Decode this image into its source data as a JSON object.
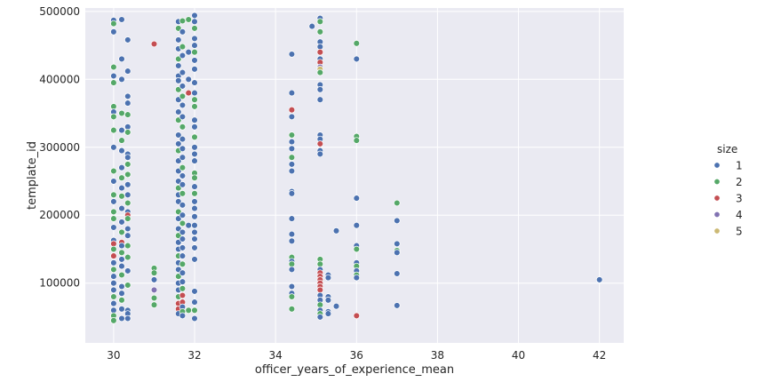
{
  "chart_data": {
    "type": "scatter",
    "title": "",
    "xlabel": "officer_years_of_experience_mean",
    "ylabel": "template_id",
    "xlim": [
      29.3,
      42.6
    ],
    "ylim": [
      12000,
      505000
    ],
    "xticks": [
      30,
      32,
      34,
      36,
      38,
      40,
      42
    ],
    "xtick_labels": [
      "30",
      "32",
      "34",
      "36",
      "38",
      "40",
      "42"
    ],
    "yticks": [
      100000,
      200000,
      300000,
      400000,
      500000
    ],
    "ytick_labels": [
      "100000",
      "200000",
      "300000",
      "400000",
      "500000"
    ],
    "grid": true,
    "legend": {
      "title": "size",
      "placement": "right",
      "entries": [
        {
          "label": "1",
          "color": "#4c72b0"
        },
        {
          "label": "2",
          "color": "#55a868"
        },
        {
          "label": "3",
          "color": "#c44e52"
        },
        {
          "label": "4",
          "color": "#8172b2"
        },
        {
          "label": "5",
          "color": "#ccb974"
        }
      ]
    },
    "colors": {
      "background": "#eaeaf2",
      "grid": "#ffffff",
      "edge": "#ffffff"
    },
    "points": [
      [
        30.0,
        487000,
        1
      ],
      [
        30.0,
        482000,
        2
      ],
      [
        30.0,
        470000,
        1
      ],
      [
        30.0,
        418000,
        2
      ],
      [
        30.0,
        405000,
        1
      ],
      [
        30.0,
        395000,
        2
      ],
      [
        30.0,
        360000,
        2
      ],
      [
        30.0,
        352000,
        1
      ],
      [
        30.0,
        345000,
        2
      ],
      [
        30.0,
        325000,
        2
      ],
      [
        30.0,
        300000,
        1
      ],
      [
        30.0,
        265000,
        2
      ],
      [
        30.0,
        250000,
        1
      ],
      [
        30.0,
        230000,
        2
      ],
      [
        30.0,
        220000,
        1
      ],
      [
        30.0,
        205000,
        2
      ],
      [
        30.0,
        195000,
        2
      ],
      [
        30.0,
        182000,
        1
      ],
      [
        30.0,
        163000,
        1
      ],
      [
        30.0,
        158000,
        3
      ],
      [
        30.0,
        150000,
        2
      ],
      [
        30.0,
        140000,
        3
      ],
      [
        30.0,
        130000,
        1
      ],
      [
        30.0,
        120000,
        2
      ],
      [
        30.0,
        110000,
        1
      ],
      [
        30.0,
        100000,
        1
      ],
      [
        30.0,
        90000,
        1
      ],
      [
        30.0,
        80000,
        2
      ],
      [
        30.0,
        70000,
        1
      ],
      [
        30.0,
        60000,
        1
      ],
      [
        30.0,
        52000,
        2
      ],
      [
        30.0,
        45000,
        2
      ],
      [
        30.2,
        488000,
        1
      ],
      [
        30.2,
        430000,
        1
      ],
      [
        30.2,
        400000,
        1
      ],
      [
        30.2,
        350000,
        2
      ],
      [
        30.2,
        325000,
        1
      ],
      [
        30.2,
        310000,
        2
      ],
      [
        30.2,
        295000,
        1
      ],
      [
        30.2,
        270000,
        1
      ],
      [
        30.2,
        255000,
        2
      ],
      [
        30.2,
        240000,
        1
      ],
      [
        30.2,
        228000,
        2
      ],
      [
        30.2,
        210000,
        1
      ],
      [
        30.2,
        190000,
        1
      ],
      [
        30.2,
        175000,
        2
      ],
      [
        30.2,
        160000,
        3
      ],
      [
        30.2,
        155000,
        1
      ],
      [
        30.2,
        145000,
        2
      ],
      [
        30.2,
        135000,
        1
      ],
      [
        30.2,
        125000,
        1
      ],
      [
        30.2,
        112000,
        2
      ],
      [
        30.2,
        95000,
        1
      ],
      [
        30.2,
        85000,
        1
      ],
      [
        30.2,
        75000,
        2
      ],
      [
        30.2,
        62000,
        1
      ],
      [
        30.2,
        48000,
        1
      ],
      [
        30.35,
        458000,
        1
      ],
      [
        30.35,
        412000,
        1
      ],
      [
        30.35,
        375000,
        1
      ],
      [
        30.35,
        365000,
        1
      ],
      [
        30.35,
        348000,
        2
      ],
      [
        30.35,
        330000,
        1
      ],
      [
        30.35,
        322000,
        2
      ],
      [
        30.35,
        290000,
        1
      ],
      [
        30.35,
        285000,
        1
      ],
      [
        30.35,
        275000,
        2
      ],
      [
        30.35,
        260000,
        2
      ],
      [
        30.35,
        245000,
        1
      ],
      [
        30.35,
        230000,
        1
      ],
      [
        30.35,
        218000,
        2
      ],
      [
        30.35,
        205000,
        1
      ],
      [
        30.35,
        200000,
        3
      ],
      [
        30.35,
        195000,
        2
      ],
      [
        30.35,
        180000,
        1
      ],
      [
        30.35,
        170000,
        1
      ],
      [
        30.35,
        155000,
        2
      ],
      [
        30.35,
        138000,
        2
      ],
      [
        30.35,
        118000,
        1
      ],
      [
        30.35,
        97000,
        2
      ],
      [
        30.35,
        60000,
        1
      ],
      [
        30.35,
        55000,
        1
      ],
      [
        30.35,
        48000,
        1
      ],
      [
        31.0,
        452000,
        3
      ],
      [
        31.0,
        122000,
        2
      ],
      [
        31.0,
        115000,
        2
      ],
      [
        31.0,
        105000,
        1
      ],
      [
        31.0,
        90000,
        4
      ],
      [
        31.0,
        78000,
        2
      ],
      [
        31.0,
        68000,
        2
      ],
      [
        31.6,
        485000,
        1
      ],
      [
        31.6,
        475000,
        2
      ],
      [
        31.6,
        458000,
        1
      ],
      [
        31.6,
        445000,
        1
      ],
      [
        31.6,
        430000,
        2
      ],
      [
        31.6,
        420000,
        1
      ],
      [
        31.6,
        405000,
        1
      ],
      [
        31.6,
        398000,
        1
      ],
      [
        31.6,
        385000,
        2
      ],
      [
        31.6,
        370000,
        1
      ],
      [
        31.6,
        352000,
        1
      ],
      [
        31.6,
        340000,
        2
      ],
      [
        31.6,
        318000,
        1
      ],
      [
        31.6,
        305000,
        1
      ],
      [
        31.6,
        295000,
        2
      ],
      [
        31.6,
        280000,
        1
      ],
      [
        31.6,
        265000,
        1
      ],
      [
        31.6,
        250000,
        1
      ],
      [
        31.6,
        240000,
        2
      ],
      [
        31.6,
        230000,
        1
      ],
      [
        31.6,
        220000,
        1
      ],
      [
        31.6,
        205000,
        2
      ],
      [
        31.6,
        195000,
        1
      ],
      [
        31.6,
        180000,
        1
      ],
      [
        31.6,
        170000,
        2
      ],
      [
        31.6,
        160000,
        1
      ],
      [
        31.6,
        150000,
        1
      ],
      [
        31.6,
        140000,
        2
      ],
      [
        31.6,
        130000,
        1
      ],
      [
        31.6,
        120000,
        1
      ],
      [
        31.6,
        110000,
        2
      ],
      [
        31.6,
        100000,
        1
      ],
      [
        31.6,
        90000,
        1
      ],
      [
        31.6,
        80000,
        2
      ],
      [
        31.6,
        70000,
        3
      ],
      [
        31.6,
        62000,
        3
      ],
      [
        31.6,
        55000,
        1
      ],
      [
        31.7,
        486000,
        2
      ],
      [
        31.7,
        470000,
        1
      ],
      [
        31.7,
        448000,
        2
      ],
      [
        31.7,
        435000,
        1
      ],
      [
        31.7,
        410000,
        1
      ],
      [
        31.7,
        390000,
        1
      ],
      [
        31.7,
        375000,
        2
      ],
      [
        31.7,
        362000,
        1
      ],
      [
        31.7,
        345000,
        1
      ],
      [
        31.7,
        330000,
        2
      ],
      [
        31.7,
        312000,
        1
      ],
      [
        31.7,
        298000,
        1
      ],
      [
        31.7,
        285000,
        1
      ],
      [
        31.7,
        270000,
        2
      ],
      [
        31.7,
        258000,
        1
      ],
      [
        31.7,
        245000,
        1
      ],
      [
        31.7,
        232000,
        2
      ],
      [
        31.7,
        215000,
        1
      ],
      [
        31.7,
        200000,
        1
      ],
      [
        31.7,
        188000,
        2
      ],
      [
        31.7,
        175000,
        1
      ],
      [
        31.7,
        165000,
        1
      ],
      [
        31.7,
        152000,
        1
      ],
      [
        31.7,
        140000,
        1
      ],
      [
        31.7,
        128000,
        2
      ],
      [
        31.7,
        115000,
        1
      ],
      [
        31.7,
        102000,
        1
      ],
      [
        31.7,
        92000,
        2
      ],
      [
        31.7,
        82000,
        3
      ],
      [
        31.7,
        72000,
        3
      ],
      [
        31.7,
        65000,
        1
      ],
      [
        31.7,
        58000,
        2
      ],
      [
        31.7,
        52000,
        1
      ],
      [
        31.85,
        488000,
        2
      ],
      [
        31.85,
        440000,
        1
      ],
      [
        31.85,
        400000,
        1
      ],
      [
        31.85,
        380000,
        3
      ],
      [
        31.85,
        185000,
        1
      ],
      [
        31.85,
        60000,
        2
      ],
      [
        32.0,
        494000,
        1
      ],
      [
        32.0,
        485000,
        1
      ],
      [
        32.0,
        475000,
        2
      ],
      [
        32.0,
        460000,
        1
      ],
      [
        32.0,
        450000,
        1
      ],
      [
        32.0,
        440000,
        2
      ],
      [
        32.0,
        428000,
        1
      ],
      [
        32.0,
        415000,
        1
      ],
      [
        32.0,
        395000,
        1
      ],
      [
        32.0,
        380000,
        1
      ],
      [
        32.0,
        370000,
        2
      ],
      [
        32.0,
        360000,
        2
      ],
      [
        32.0,
        340000,
        1
      ],
      [
        32.0,
        330000,
        1
      ],
      [
        32.0,
        315000,
        2
      ],
      [
        32.0,
        300000,
        1
      ],
      [
        32.0,
        290000,
        1
      ],
      [
        32.0,
        280000,
        1
      ],
      [
        32.0,
        262000,
        2
      ],
      [
        32.0,
        255000,
        2
      ],
      [
        32.0,
        242000,
        1
      ],
      [
        32.0,
        232000,
        2
      ],
      [
        32.0,
        220000,
        1
      ],
      [
        32.0,
        210000,
        1
      ],
      [
        32.0,
        198000,
        1
      ],
      [
        32.0,
        185000,
        1
      ],
      [
        32.0,
        175000,
        1
      ],
      [
        32.0,
        165000,
        1
      ],
      [
        32.0,
        152000,
        1
      ],
      [
        32.0,
        135000,
        1
      ],
      [
        32.0,
        88000,
        1
      ],
      [
        32.0,
        72000,
        1
      ],
      [
        32.0,
        60000,
        2
      ],
      [
        32.0,
        48000,
        1
      ],
      [
        34.4,
        437000,
        1
      ],
      [
        34.4,
        380000,
        1
      ],
      [
        34.4,
        355000,
        3
      ],
      [
        34.4,
        345000,
        1
      ],
      [
        34.4,
        318000,
        2
      ],
      [
        34.4,
        308000,
        1
      ],
      [
        34.4,
        298000,
        1
      ],
      [
        34.4,
        285000,
        2
      ],
      [
        34.4,
        275000,
        1
      ],
      [
        34.4,
        265000,
        1
      ],
      [
        34.4,
        235000,
        1
      ],
      [
        34.4,
        232000,
        1
      ],
      [
        34.4,
        195000,
        1
      ],
      [
        34.4,
        172000,
        1
      ],
      [
        34.4,
        162000,
        1
      ],
      [
        34.4,
        138000,
        2
      ],
      [
        34.4,
        132000,
        1
      ],
      [
        34.4,
        128000,
        2
      ],
      [
        34.4,
        120000,
        1
      ],
      [
        34.4,
        95000,
        1
      ],
      [
        34.4,
        85000,
        1
      ],
      [
        34.4,
        80000,
        2
      ],
      [
        34.4,
        62000,
        2
      ],
      [
        34.9,
        478000,
        1
      ],
      [
        35.1,
        490000,
        1
      ],
      [
        35.1,
        485000,
        2
      ],
      [
        35.1,
        470000,
        2
      ],
      [
        35.1,
        455000,
        1
      ],
      [
        35.1,
        448000,
        1
      ],
      [
        35.1,
        440000,
        3
      ],
      [
        35.1,
        430000,
        1
      ],
      [
        35.1,
        425000,
        3
      ],
      [
        35.1,
        418000,
        4
      ],
      [
        35.1,
        415000,
        5
      ],
      [
        35.1,
        410000,
        2
      ],
      [
        35.1,
        392000,
        1
      ],
      [
        35.1,
        385000,
        1
      ],
      [
        35.1,
        370000,
        1
      ],
      [
        35.1,
        318000,
        1
      ],
      [
        35.1,
        312000,
        1
      ],
      [
        35.1,
        305000,
        3
      ],
      [
        35.1,
        295000,
        1
      ],
      [
        35.1,
        290000,
        1
      ],
      [
        35.1,
        135000,
        2
      ],
      [
        35.1,
        128000,
        2
      ],
      [
        35.1,
        120000,
        1
      ],
      [
        35.1,
        115000,
        3
      ],
      [
        35.1,
        110000,
        3
      ],
      [
        35.1,
        105000,
        3
      ],
      [
        35.1,
        100000,
        3
      ],
      [
        35.1,
        95000,
        3
      ],
      [
        35.1,
        90000,
        3
      ],
      [
        35.1,
        82000,
        1
      ],
      [
        35.1,
        75000,
        1
      ],
      [
        35.1,
        68000,
        2
      ],
      [
        35.1,
        60000,
        1
      ],
      [
        35.1,
        55000,
        2
      ],
      [
        35.1,
        50000,
        1
      ],
      [
        35.3,
        112000,
        1
      ],
      [
        35.3,
        108000,
        1
      ],
      [
        35.3,
        80000,
        1
      ],
      [
        35.3,
        75000,
        1
      ],
      [
        35.3,
        58000,
        1
      ],
      [
        35.3,
        55000,
        1
      ],
      [
        35.5,
        177000,
        1
      ],
      [
        35.5,
        66000,
        1
      ],
      [
        36.0,
        453000,
        2
      ],
      [
        36.0,
        430000,
        1
      ],
      [
        36.0,
        316000,
        2
      ],
      [
        36.0,
        310000,
        2
      ],
      [
        36.0,
        225000,
        1
      ],
      [
        36.0,
        185000,
        1
      ],
      [
        36.0,
        155000,
        1
      ],
      [
        36.0,
        150000,
        2
      ],
      [
        36.0,
        130000,
        1
      ],
      [
        36.0,
        125000,
        2
      ],
      [
        36.0,
        118000,
        1
      ],
      [
        36.0,
        112000,
        2
      ],
      [
        36.0,
        108000,
        1
      ],
      [
        36.0,
        52000,
        3
      ],
      [
        37.0,
        218000,
        2
      ],
      [
        37.0,
        192000,
        1
      ],
      [
        37.0,
        158000,
        1
      ],
      [
        37.0,
        148000,
        2
      ],
      [
        37.0,
        145000,
        1
      ],
      [
        37.0,
        114000,
        1
      ],
      [
        37.0,
        67000,
        1
      ],
      [
        42.0,
        105000,
        1
      ]
    ]
  }
}
